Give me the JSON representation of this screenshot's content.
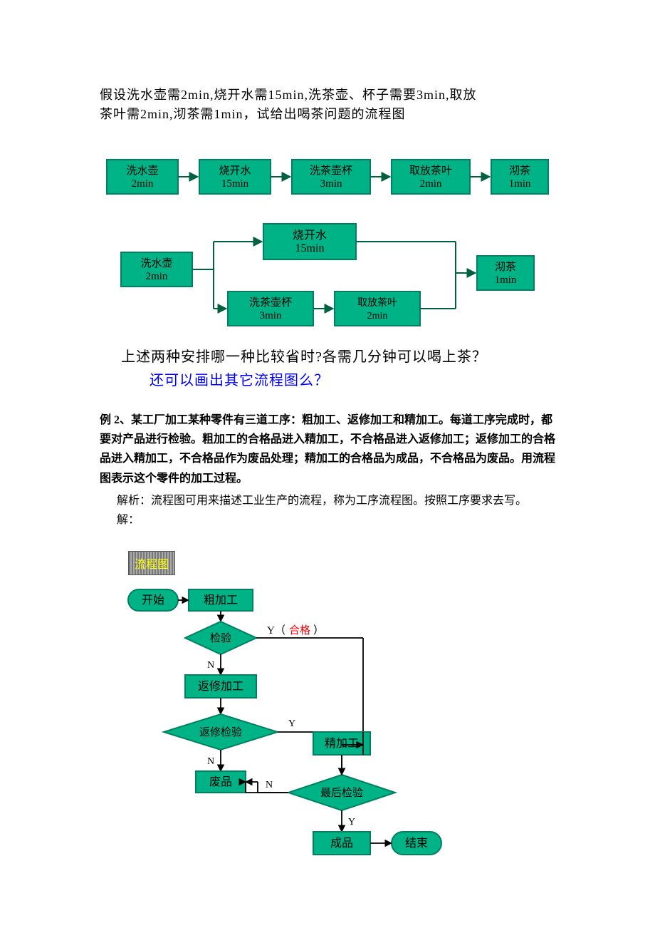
{
  "intro_line1": "假设洗水壶需2min,烧开水需15min,洗茶壶、杯子需要3min,取放",
  "intro_line2": "茶叶需2min,沏茶需1min，试给出喝茶问题的流程图",
  "tea_colors": {
    "box_fill": "#00b386",
    "box_stroke": "#008060",
    "arrow": "#006040",
    "text": "#000000"
  },
  "tea_row1": [
    {
      "l1": "洗水壶",
      "l2": "2min"
    },
    {
      "l1": "烧开水",
      "l2": "15min"
    },
    {
      "l1": "洗茶壶杯",
      "l2": "3min"
    },
    {
      "l1": "取放茶叶",
      "l2": "2min"
    },
    {
      "l1": "沏茶",
      "l2": "1min"
    }
  ],
  "tea_p2": {
    "wash_kettle": {
      "l1": "洗水壶",
      "l2": "2min"
    },
    "boil": {
      "l1": "烧开水",
      "l2": "15min"
    },
    "wash_cup": {
      "l1": "洗茶壶杯",
      "l2": "3min"
    },
    "take_tea": {
      "l1": "取放茶叶",
      "l2": "2min"
    },
    "brew": {
      "l1": "沏茶",
      "l2": "1min"
    }
  },
  "caption1": "上述两种安排哪一种比较省时?各需几分钟可以喝上茶？",
  "caption2": "还可以画出其它流程图么？",
  "ex2_para": "例 2、某工厂加工某种零件有三道工序：粗加工、返修加工和精加工。每道工序完成时，都要对产品进行检验。粗加工的合格品进入精加工，不合格品进入返修加工；返修加工的合格品进入精加工，不合格品作为废品处理；精加工的合格品为成品，不合格品为废品。用流程图表示这个零件的加工过程。",
  "ex2_sub1": "解析：流程图可用来描述工业生产的流程，称为工序流程图。按照工序要求去写。",
  "ex2_sub2": "解：",
  "fc_title": "流程图",
  "fc_colors": {
    "fill": "#00b386",
    "stroke": "#008060",
    "text": "#000000",
    "line": "#000000"
  },
  "fc_labels": {
    "start": "开始",
    "rough": "粗加工",
    "insp1": "检验",
    "y1a": "Y（",
    "y1b": "合格",
    "y1c": "）",
    "n": "N",
    "rework": "返修加工",
    "insp2": "返修检验",
    "y": "Y",
    "fine": "精加工",
    "scrap": "废品",
    "insp3": "最后检验",
    "product": "成品",
    "end": "结束"
  }
}
